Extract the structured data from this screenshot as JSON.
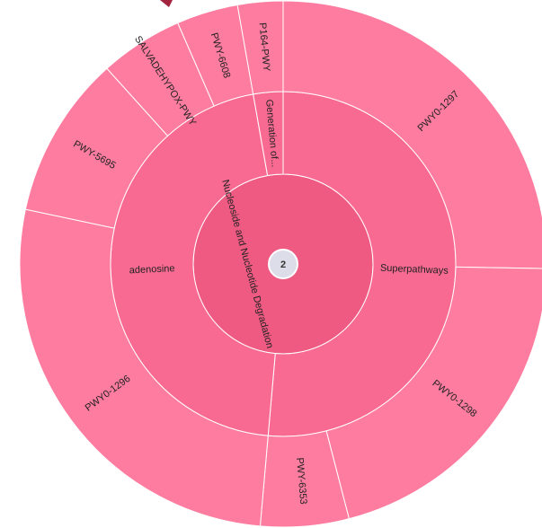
{
  "chart_data": {
    "type": "sunburst",
    "badge": 2,
    "colors": [
      "#ee5a82",
      "#f86a92",
      "#fe7ca0"
    ],
    "root": {
      "name": "Nucleoside and Nucleotide Degradation",
      "children": [
        {
          "name": "Superpathways",
          "children": [
            {
              "name": "PWY0-1297",
              "value": 91
            },
            {
              "name": "PWY0-1298",
              "value": 74.5
            },
            {
              "name": "PWY-6353",
              "value": 19.5
            }
          ]
        },
        {
          "name": "adenosine",
          "children": [
            {
              "name": "PWY0-1296",
              "value": 97
            },
            {
              "name": "PWY-5695",
              "value": 36
            },
            {
              "name": "SALVADEHYPOX-PWY",
              "value": 18.4
            },
            {
              "name": "PWY-6608",
              "value": 13.6
            }
          ]
        },
        {
          "name": "Generation of...",
          "children": [
            {
              "name": "P164-PWY",
              "value": 10
            }
          ]
        }
      ]
    }
  }
}
